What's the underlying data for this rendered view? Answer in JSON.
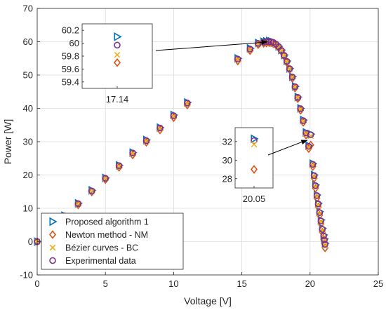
{
  "chart_data": {
    "type": "scatter",
    "title": "",
    "xlabel": "Voltage [V]",
    "ylabel": "Power [W]",
    "xlim": [
      0,
      25
    ],
    "ylim": [
      -10,
      70
    ],
    "xticks": [
      0,
      5,
      10,
      15,
      20,
      25
    ],
    "yticks": [
      -10,
      0,
      10,
      20,
      30,
      40,
      50,
      60,
      70
    ],
    "grid": true,
    "legend_position": "bottom-left",
    "colors": {
      "proposed": "#0072BD",
      "newton": "#D95319",
      "bezier": "#EDB120",
      "experimental": "#7E2F8E",
      "axis": "#262626",
      "grid": "#dcdcdc"
    },
    "series": [
      {
        "name": "Proposed algorithm 1",
        "marker": "triangle-right",
        "x": [
          0,
          2,
          3,
          4,
          5,
          6,
          7,
          8,
          9,
          10,
          11,
          14.7,
          15.6,
          16.2,
          16.6,
          16.8,
          17.0,
          17.14,
          17.3,
          17.5,
          17.7,
          17.9,
          18.1,
          18.3,
          18.5,
          18.7,
          18.9,
          19.1,
          19.3,
          19.5,
          19.7,
          19.9,
          20.05,
          20.2,
          20.3,
          20.4,
          20.5,
          20.6,
          20.7,
          20.8,
          20.9,
          21.0,
          21.05,
          21.1
        ],
        "y": [
          0,
          7.8,
          11.5,
          15.4,
          19.1,
          22.9,
          26.7,
          30.5,
          34.2,
          38.0,
          41.8,
          55.0,
          58.0,
          59.6,
          60.0,
          60.1,
          60.2,
          60.1,
          59.9,
          59.4,
          58.6,
          57.5,
          56.0,
          54.2,
          52.0,
          49.5,
          46.6,
          43.4,
          40.0,
          36.5,
          32.8,
          28.8,
          32.3,
          23.4,
          20.0,
          17.0,
          14.0,
          11.5,
          9.0,
          6.5,
          4.0,
          2.0,
          0.8,
          -0.5
        ]
      },
      {
        "name": "Newton method - NM",
        "marker": "diamond",
        "x": [
          0,
          2,
          3,
          4,
          5,
          6,
          7,
          8,
          9,
          10,
          11,
          14.7,
          15.6,
          16.2,
          16.6,
          16.8,
          17.0,
          17.14,
          17.3,
          17.5,
          17.7,
          17.9,
          18.1,
          18.3,
          18.5,
          18.7,
          18.9,
          19.1,
          19.3,
          19.5,
          19.7,
          19.9,
          20.05,
          20.2,
          20.3,
          20.4,
          20.5,
          20.6,
          20.7,
          20.8,
          20.9,
          21.0,
          21.05,
          21.1
        ],
        "y": [
          0,
          7.4,
          11.0,
          14.9,
          18.6,
          22.3,
          26.0,
          29.8,
          33.5,
          37.2,
          41.0,
          54.2,
          57.3,
          59.1,
          59.5,
          59.6,
          59.7,
          59.7,
          59.5,
          59.0,
          58.2,
          57.1,
          55.6,
          53.8,
          51.6,
          49.0,
          46.1,
          42.9,
          39.4,
          35.8,
          32.0,
          27.9,
          29.0,
          22.5,
          19.0,
          16.0,
          13.0,
          10.4,
          7.9,
          5.3,
          2.8,
          0.6,
          -0.6,
          -1.9
        ]
      },
      {
        "name": "Bézier curves - BC",
        "marker": "x",
        "x": [
          0,
          2,
          3,
          4,
          5,
          6,
          7,
          8,
          9,
          10,
          11,
          14.7,
          15.6,
          16.2,
          16.6,
          16.8,
          17.0,
          17.14,
          17.3,
          17.5,
          17.7,
          17.9,
          18.1,
          18.3,
          18.5,
          18.7,
          18.9,
          19.1,
          19.3,
          19.5,
          19.7,
          19.9,
          20.05,
          20.2,
          20.3,
          20.4,
          20.5,
          20.6,
          20.7,
          20.8,
          20.9,
          21.0,
          21.05,
          21.1
        ],
        "y": [
          0,
          7.6,
          11.3,
          15.1,
          18.9,
          22.6,
          26.4,
          30.2,
          33.9,
          37.6,
          41.4,
          54.6,
          57.6,
          59.3,
          59.7,
          59.8,
          59.9,
          59.8,
          59.7,
          59.2,
          58.4,
          57.3,
          55.8,
          54.0,
          51.8,
          49.3,
          46.4,
          43.2,
          39.7,
          36.1,
          32.4,
          28.3,
          31.7,
          22.9,
          19.5,
          16.5,
          13.5,
          11.0,
          8.4,
          5.9,
          3.4,
          1.3,
          0.1,
          -1.2
        ]
      },
      {
        "name": "Experimental data",
        "marker": "circle",
        "x": [
          0,
          2,
          3,
          4,
          5,
          6,
          7,
          8,
          9,
          10,
          11,
          14.7,
          15.6,
          16.2,
          16.6,
          16.8,
          17.0,
          17.14,
          17.3,
          17.5,
          17.7,
          17.9,
          18.1,
          18.3,
          18.5,
          18.7,
          18.9,
          19.1,
          19.3,
          19.5,
          19.7,
          19.9,
          20.05,
          20.2,
          20.3,
          20.4,
          20.5,
          20.6,
          20.7,
          20.8,
          20.9,
          21.0,
          21.05,
          21.1
        ],
        "y": [
          0,
          7.7,
          11.4,
          15.2,
          19.0,
          22.8,
          26.6,
          30.3,
          34.1,
          37.8,
          41.6,
          54.8,
          57.8,
          59.5,
          59.9,
          60.0,
          60.0,
          60.0,
          59.8,
          59.3,
          58.5,
          57.4,
          55.9,
          54.1,
          51.9,
          49.4,
          46.5,
          43.3,
          39.9,
          36.3,
          32.6,
          28.6,
          32.1,
          23.2,
          19.8,
          16.8,
          13.8,
          11.3,
          8.7,
          6.2,
          3.7,
          1.7,
          0.5,
          -0.8
        ]
      }
    ],
    "insets": [
      {
        "xtick": "17.14",
        "yticks": [
          "60.2",
          "60",
          "59.8",
          "59.6",
          "59.4"
        ],
        "ylim": [
          59.3,
          60.3
        ],
        "x": 17.14,
        "values": {
          "proposed": 60.1,
          "experimental": 59.97,
          "bezier": 59.82,
          "newton": 59.7
        },
        "arrow_target": [
          17.14,
          60.0
        ]
      },
      {
        "xtick": "20.05",
        "yticks": [
          "32",
          "30",
          "28"
        ],
        "ylim": [
          27,
          33.5
        ],
        "x": 20.05,
        "values": {
          "proposed": 32.3,
          "experimental": 32.1,
          "bezier": 31.7,
          "newton": 29.0
        },
        "arrow_target": [
          20.05,
          30.5
        ]
      }
    ]
  }
}
